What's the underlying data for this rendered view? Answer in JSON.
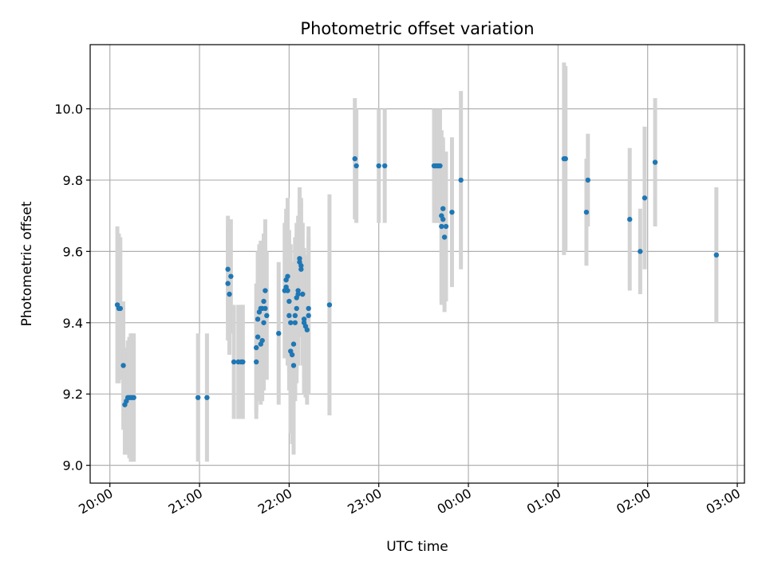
{
  "chart_data": {
    "type": "scatter",
    "title": "Photometric offset variation",
    "xlabel": "UTC time",
    "ylabel": "Photometric offset",
    "x_axis": {
      "type": "time-of-day",
      "start_day_time": "20:00",
      "xlim_hours": [
        -0.22,
        7.08
      ],
      "ticks": [
        {
          "hour": 0,
          "label": "20:00"
        },
        {
          "hour": 1,
          "label": "21:00"
        },
        {
          "hour": 2,
          "label": "22:00"
        },
        {
          "hour": 3,
          "label": "23:00"
        },
        {
          "hour": 4,
          "label": "00:00"
        },
        {
          "hour": 5,
          "label": "01:00"
        },
        {
          "hour": 6,
          "label": "02:00"
        },
        {
          "hour": 7,
          "label": "03:00"
        }
      ]
    },
    "y_axis": {
      "ylim": [
        8.95,
        10.18
      ],
      "ticks": [
        {
          "value": 9.0,
          "label": "9.0"
        },
        {
          "value": 9.2,
          "label": "9.2"
        },
        {
          "value": 9.4,
          "label": "9.4"
        },
        {
          "value": 9.6,
          "label": "9.6"
        },
        {
          "value": 9.8,
          "label": "9.8"
        },
        {
          "value": 10.0,
          "label": "10.0"
        }
      ]
    },
    "grid": true,
    "colors": {
      "point": "#1f77b4",
      "errorbar": "#d3d3d3",
      "grid": "#b0b0b0"
    },
    "points": [
      {
        "t": "20:05",
        "y": 9.45,
        "err": 0.22
      },
      {
        "t": "20:06",
        "y": 9.44,
        "err": 0.21
      },
      {
        "t": "20:07",
        "y": 9.44,
        "err": 0.2
      },
      {
        "t": "20:09",
        "y": 9.28,
        "err": 0.18
      },
      {
        "t": "20:10",
        "y": 9.17,
        "err": 0.14
      },
      {
        "t": "20:11",
        "y": 9.18,
        "err": 0.15
      },
      {
        "t": "20:12",
        "y": 9.19,
        "err": 0.16
      },
      {
        "t": "20:13",
        "y": 9.19,
        "err": 0.17
      },
      {
        "t": "20:14",
        "y": 9.19,
        "err": 0.18
      },
      {
        "t": "20:15",
        "y": 9.19,
        "err": 0.18
      },
      {
        "t": "20:16",
        "y": 9.19,
        "err": 0.18
      },
      {
        "t": "20:59",
        "y": 9.19,
        "err": 0.18
      },
      {
        "t": "21:05",
        "y": 9.19,
        "err": 0.18
      },
      {
        "t": "21:19",
        "y": 9.55,
        "err": 0.15
      },
      {
        "t": "21:19",
        "y": 9.51,
        "err": 0.16
      },
      {
        "t": "21:20",
        "y": 9.48,
        "err": 0.17
      },
      {
        "t": "21:21",
        "y": 9.53,
        "err": 0.16
      },
      {
        "t": "21:23",
        "y": 9.29,
        "err": 0.16
      },
      {
        "t": "21:26",
        "y": 9.29,
        "err": 0.16
      },
      {
        "t": "21:28",
        "y": 9.29,
        "err": 0.16
      },
      {
        "t": "21:29",
        "y": 9.29,
        "err": 0.16
      },
      {
        "t": "21:38",
        "y": 9.29,
        "err": 0.16
      },
      {
        "t": "21:38",
        "y": 9.33,
        "err": 0.18
      },
      {
        "t": "21:39",
        "y": 9.36,
        "err": 0.18
      },
      {
        "t": "21:39",
        "y": 9.41,
        "err": 0.19
      },
      {
        "t": "21:40",
        "y": 9.43,
        "err": 0.19
      },
      {
        "t": "21:41",
        "y": 9.44,
        "err": 0.19
      },
      {
        "t": "21:41",
        "y": 9.34,
        "err": 0.17
      },
      {
        "t": "21:42",
        "y": 9.35,
        "err": 0.17
      },
      {
        "t": "21:42",
        "y": 9.44,
        "err": 0.19
      },
      {
        "t": "21:43",
        "y": 9.4,
        "err": 0.19
      },
      {
        "t": "21:43",
        "y": 9.46,
        "err": 0.19
      },
      {
        "t": "21:44",
        "y": 9.49,
        "err": 0.2
      },
      {
        "t": "21:44",
        "y": 9.44,
        "err": 0.19
      },
      {
        "t": "21:45",
        "y": 9.42,
        "err": 0.18
      },
      {
        "t": "21:53",
        "y": 9.37,
        "err": 0.2
      },
      {
        "t": "21:57",
        "y": 9.49,
        "err": 0.19
      },
      {
        "t": "21:58",
        "y": 9.5,
        "err": 0.2
      },
      {
        "t": "21:58",
        "y": 9.52,
        "err": 0.2
      },
      {
        "t": "21:59",
        "y": 9.53,
        "err": 0.22
      },
      {
        "t": "21:59",
        "y": 9.49,
        "err": 0.21
      },
      {
        "t": "22:00",
        "y": 9.46,
        "err": 0.2
      },
      {
        "t": "22:00",
        "y": 9.42,
        "err": 0.21
      },
      {
        "t": "22:01",
        "y": 9.4,
        "err": 0.22
      },
      {
        "t": "22:01",
        "y": 9.32,
        "err": 0.23
      },
      {
        "t": "22:02",
        "y": 9.31,
        "err": 0.25
      },
      {
        "t": "22:03",
        "y": 9.28,
        "err": 0.25
      },
      {
        "t": "22:03",
        "y": 9.34,
        "err": 0.23
      },
      {
        "t": "22:04",
        "y": 9.42,
        "err": 0.22
      },
      {
        "t": "22:04",
        "y": 9.4,
        "err": 0.22
      },
      {
        "t": "22:05",
        "y": 9.44,
        "err": 0.21
      },
      {
        "t": "22:05",
        "y": 9.47,
        "err": 0.21
      },
      {
        "t": "22:06",
        "y": 9.49,
        "err": 0.21
      },
      {
        "t": "22:06",
        "y": 9.48,
        "err": 0.2
      },
      {
        "t": "22:07",
        "y": 9.57,
        "err": 0.2
      },
      {
        "t": "22:07",
        "y": 9.58,
        "err": 0.2
      },
      {
        "t": "22:08",
        "y": 9.56,
        "err": 0.19
      },
      {
        "t": "22:08",
        "y": 9.55,
        "err": 0.19
      },
      {
        "t": "22:09",
        "y": 9.48,
        "err": 0.2
      },
      {
        "t": "22:09",
        "y": 9.48,
        "err": 0.2
      },
      {
        "t": "22:10",
        "y": 9.41,
        "err": 0.2
      },
      {
        "t": "22:10",
        "y": 9.4,
        "err": 0.2
      },
      {
        "t": "22:11",
        "y": 9.39,
        "err": 0.2
      },
      {
        "t": "22:12",
        "y": 9.38,
        "err": 0.21
      },
      {
        "t": "22:13",
        "y": 9.42,
        "err": 0.22
      },
      {
        "t": "22:13",
        "y": 9.44,
        "err": 0.23
      },
      {
        "t": "22:27",
        "y": 9.45,
        "err": 0.31
      },
      {
        "t": "22:44",
        "y": 9.86,
        "err": 0.17
      },
      {
        "t": "22:45",
        "y": 9.84,
        "err": 0.16
      },
      {
        "t": "23:00",
        "y": 9.84,
        "err": 0.16
      },
      {
        "t": "23:04",
        "y": 9.84,
        "err": 0.16
      },
      {
        "t": "23:37",
        "y": 9.84,
        "err": 0.16
      },
      {
        "t": "23:38",
        "y": 9.84,
        "err": 0.16
      },
      {
        "t": "23:39",
        "y": 9.84,
        "err": 0.16
      },
      {
        "t": "23:40",
        "y": 9.84,
        "err": 0.16
      },
      {
        "t": "23:41",
        "y": 9.84,
        "err": 0.16
      },
      {
        "t": "23:42",
        "y": 9.7,
        "err": 0.24
      },
      {
        "t": "23:42",
        "y": 9.67,
        "err": 0.22
      },
      {
        "t": "23:43",
        "y": 9.72,
        "err": 0.2
      },
      {
        "t": "23:43",
        "y": 9.69,
        "err": 0.22
      },
      {
        "t": "23:44",
        "y": 9.64,
        "err": 0.21
      },
      {
        "t": "23:45",
        "y": 9.67,
        "err": 0.21
      },
      {
        "t": "23:49",
        "y": 9.71,
        "err": 0.21
      },
      {
        "t": "23:55",
        "y": 9.8,
        "err": 0.25
      },
      {
        "t": "01:04",
        "y": 9.86,
        "err": 0.27
      },
      {
        "t": "01:05",
        "y": 9.86,
        "err": 0.26
      },
      {
        "t": "01:19",
        "y": 9.71,
        "err": 0.15
      },
      {
        "t": "01:20",
        "y": 9.8,
        "err": 0.13
      },
      {
        "t": "01:48",
        "y": 9.69,
        "err": 0.2
      },
      {
        "t": "01:55",
        "y": 9.6,
        "err": 0.12
      },
      {
        "t": "01:58",
        "y": 9.75,
        "err": 0.2
      },
      {
        "t": "02:05",
        "y": 9.85,
        "err": 0.18
      },
      {
        "t": "02:46",
        "y": 9.59,
        "err": 0.19
      }
    ]
  }
}
